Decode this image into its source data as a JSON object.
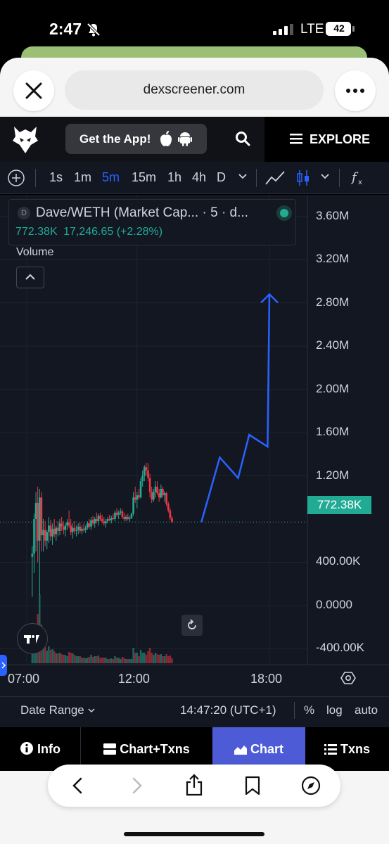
{
  "status_bar": {
    "time": "2:47",
    "network": "LTE",
    "battery": "42"
  },
  "browser": {
    "url": "dexscreener.com"
  },
  "site_header": {
    "get_app_label": "Get the App!",
    "explore_label": "EXPLORE"
  },
  "toolbar": {
    "timeframes": [
      "1s",
      "1m",
      "5m",
      "15m",
      "1h",
      "4h",
      "D"
    ],
    "active_timeframe": "5m"
  },
  "chart": {
    "title": "Dave/WETH (Market Cap... · 5 · d...",
    "last_value": "772.38K",
    "change": "17,246.65 (+2.28%)",
    "volume_label": "Volume",
    "price_tag": "772.38K",
    "colors": {
      "up": "#22ab94",
      "down": "#f23645",
      "annotation": "#2962ff",
      "background": "#131722"
    }
  },
  "chart_data": {
    "type": "candlestick",
    "y_axis_labels": [
      "3.60M",
      "3.20M",
      "2.80M",
      "2.40M",
      "2.00M",
      "1.60M",
      "1.20M",
      "400.00K",
      "0.0000",
      "-400.00K"
    ],
    "x_axis_labels": [
      "07:00",
      "12:00",
      "18:00"
    ],
    "ylim": [
      -560000,
      3800000
    ],
    "current_value": 772380,
    "annotation_path": [
      {
        "time": "14:55",
        "value": 772380
      },
      {
        "time": "15:45",
        "value": 1370000
      },
      {
        "time": "16:35",
        "value": 1180000
      },
      {
        "time": "17:05",
        "value": 1580000
      },
      {
        "time": "17:55",
        "value": 1470000
      },
      {
        "time": "18:00",
        "value": 2880000
      }
    ],
    "candles": [
      {
        "t": "07:15",
        "o": 450000,
        "h": 550000,
        "l": 80000,
        "c": 480000
      },
      {
        "t": "07:20",
        "o": 480000,
        "h": 850000,
        "l": 300000,
        "c": 800000
      },
      {
        "t": "07:25",
        "o": 800000,
        "h": 1050000,
        "l": 500000,
        "c": 950000
      },
      {
        "t": "07:30",
        "o": 950000,
        "h": 1100000,
        "l": 400000,
        "c": 600000
      },
      {
        "t": "07:35",
        "o": 600000,
        "h": 1080000,
        "l": 100000,
        "c": 1000000
      },
      {
        "t": "07:40",
        "o": 1000000,
        "h": 1050000,
        "l": 500000,
        "c": 650000
      },
      {
        "t": "07:45",
        "o": 650000,
        "h": 800000,
        "l": 500000,
        "c": 700000
      },
      {
        "t": "07:50",
        "o": 700000,
        "h": 780000,
        "l": 550000,
        "c": 600000
      },
      {
        "t": "07:55",
        "o": 600000,
        "h": 700000,
        "l": 520000,
        "c": 680000
      },
      {
        "t": "08:00",
        "o": 680000,
        "h": 820000,
        "l": 580000,
        "c": 740000
      },
      {
        "t": "08:05",
        "o": 740000,
        "h": 790000,
        "l": 600000,
        "c": 640000
      },
      {
        "t": "08:10",
        "o": 640000,
        "h": 760000,
        "l": 560000,
        "c": 710000
      },
      {
        "t": "08:15",
        "o": 710000,
        "h": 800000,
        "l": 630000,
        "c": 660000
      },
      {
        "t": "08:20",
        "o": 660000,
        "h": 740000,
        "l": 600000,
        "c": 720000
      },
      {
        "t": "08:25",
        "o": 720000,
        "h": 780000,
        "l": 640000,
        "c": 690000
      },
      {
        "t": "08:30",
        "o": 690000,
        "h": 800000,
        "l": 650000,
        "c": 760000
      },
      {
        "t": "08:35",
        "o": 760000,
        "h": 820000,
        "l": 690000,
        "c": 730000
      },
      {
        "t": "08:40",
        "o": 730000,
        "h": 780000,
        "l": 660000,
        "c": 700000
      },
      {
        "t": "08:45",
        "o": 700000,
        "h": 760000,
        "l": 640000,
        "c": 740000
      },
      {
        "t": "08:50",
        "o": 740000,
        "h": 800000,
        "l": 700000,
        "c": 770000
      },
      {
        "t": "08:55",
        "o": 770000,
        "h": 880000,
        "l": 720000,
        "c": 740000
      },
      {
        "t": "09:00",
        "o": 740000,
        "h": 800000,
        "l": 650000,
        "c": 680000
      },
      {
        "t": "09:05",
        "o": 680000,
        "h": 760000,
        "l": 620000,
        "c": 720000
      },
      {
        "t": "09:10",
        "o": 720000,
        "h": 780000,
        "l": 660000,
        "c": 690000
      },
      {
        "t": "09:15",
        "o": 690000,
        "h": 740000,
        "l": 640000,
        "c": 700000
      },
      {
        "t": "09:20",
        "o": 700000,
        "h": 760000,
        "l": 660000,
        "c": 730000
      },
      {
        "t": "09:25",
        "o": 730000,
        "h": 770000,
        "l": 670000,
        "c": 690000
      },
      {
        "t": "09:30",
        "o": 690000,
        "h": 740000,
        "l": 660000,
        "c": 710000
      },
      {
        "t": "09:35",
        "o": 710000,
        "h": 760000,
        "l": 680000,
        "c": 700000
      },
      {
        "t": "09:40",
        "o": 700000,
        "h": 740000,
        "l": 670000,
        "c": 720000
      },
      {
        "t": "09:45",
        "o": 720000,
        "h": 780000,
        "l": 700000,
        "c": 760000
      },
      {
        "t": "09:50",
        "o": 760000,
        "h": 800000,
        "l": 710000,
        "c": 730000
      },
      {
        "t": "09:55",
        "o": 730000,
        "h": 820000,
        "l": 700000,
        "c": 790000
      },
      {
        "t": "10:00",
        "o": 790000,
        "h": 830000,
        "l": 740000,
        "c": 760000
      },
      {
        "t": "10:05",
        "o": 760000,
        "h": 820000,
        "l": 720000,
        "c": 800000
      },
      {
        "t": "10:10",
        "o": 800000,
        "h": 860000,
        "l": 760000,
        "c": 780000
      },
      {
        "t": "10:15",
        "o": 780000,
        "h": 850000,
        "l": 740000,
        "c": 830000
      },
      {
        "t": "10:20",
        "o": 830000,
        "h": 860000,
        "l": 780000,
        "c": 800000
      },
      {
        "t": "10:25",
        "o": 800000,
        "h": 840000,
        "l": 760000,
        "c": 780000
      },
      {
        "t": "10:30",
        "o": 780000,
        "h": 820000,
        "l": 740000,
        "c": 760000
      },
      {
        "t": "10:35",
        "o": 760000,
        "h": 800000,
        "l": 720000,
        "c": 780000
      },
      {
        "t": "10:40",
        "o": 780000,
        "h": 820000,
        "l": 760000,
        "c": 800000
      },
      {
        "t": "10:45",
        "o": 800000,
        "h": 840000,
        "l": 780000,
        "c": 790000
      },
      {
        "t": "10:50",
        "o": 790000,
        "h": 830000,
        "l": 760000,
        "c": 810000
      },
      {
        "t": "10:55",
        "o": 810000,
        "h": 850000,
        "l": 790000,
        "c": 800000
      },
      {
        "t": "11:00",
        "o": 800000,
        "h": 880000,
        "l": 780000,
        "c": 860000
      },
      {
        "t": "11:05",
        "o": 860000,
        "h": 900000,
        "l": 820000,
        "c": 840000
      },
      {
        "t": "11:10",
        "o": 840000,
        "h": 880000,
        "l": 800000,
        "c": 860000
      },
      {
        "t": "11:15",
        "o": 860000,
        "h": 900000,
        "l": 840000,
        "c": 870000
      },
      {
        "t": "11:20",
        "o": 870000,
        "h": 890000,
        "l": 800000,
        "c": 820000
      },
      {
        "t": "11:25",
        "o": 820000,
        "h": 860000,
        "l": 780000,
        "c": 800000
      },
      {
        "t": "11:30",
        "o": 800000,
        "h": 840000,
        "l": 780000,
        "c": 820000
      },
      {
        "t": "11:35",
        "o": 820000,
        "h": 850000,
        "l": 790000,
        "c": 800000
      },
      {
        "t": "11:40",
        "o": 800000,
        "h": 830000,
        "l": 770000,
        "c": 810000
      },
      {
        "t": "11:45",
        "o": 810000,
        "h": 860000,
        "l": 800000,
        "c": 850000
      },
      {
        "t": "11:50",
        "o": 850000,
        "h": 1050000,
        "l": 830000,
        "c": 1000000
      },
      {
        "t": "11:55",
        "o": 1000000,
        "h": 1100000,
        "l": 950000,
        "c": 980000
      },
      {
        "t": "12:00",
        "o": 980000,
        "h": 1050000,
        "l": 900000,
        "c": 1020000
      },
      {
        "t": "12:05",
        "o": 1020000,
        "h": 1080000,
        "l": 980000,
        "c": 1000000
      },
      {
        "t": "12:10",
        "o": 1000000,
        "h": 1180000,
        "l": 990000,
        "c": 1150000
      },
      {
        "t": "12:15",
        "o": 1150000,
        "h": 1250000,
        "l": 1100000,
        "c": 1200000
      },
      {
        "t": "12:20",
        "o": 1200000,
        "h": 1300000,
        "l": 1150000,
        "c": 1280000
      },
      {
        "t": "12:25",
        "o": 1280000,
        "h": 1320000,
        "l": 1200000,
        "c": 1250000
      },
      {
        "t": "12:30",
        "o": 1250000,
        "h": 1320000,
        "l": 1150000,
        "c": 1180000
      },
      {
        "t": "12:35",
        "o": 1180000,
        "h": 1220000,
        "l": 1000000,
        "c": 1050000
      },
      {
        "t": "12:40",
        "o": 1050000,
        "h": 1100000,
        "l": 950000,
        "c": 980000
      },
      {
        "t": "12:45",
        "o": 980000,
        "h": 1080000,
        "l": 960000,
        "c": 1050000
      },
      {
        "t": "12:50",
        "o": 1050000,
        "h": 1150000,
        "l": 1000000,
        "c": 1100000
      },
      {
        "t": "12:55",
        "o": 1100000,
        "h": 1150000,
        "l": 1020000,
        "c": 1040000
      },
      {
        "t": "13:00",
        "o": 1040000,
        "h": 1080000,
        "l": 960000,
        "c": 1000000
      },
      {
        "t": "13:05",
        "o": 1000000,
        "h": 1120000,
        "l": 990000,
        "c": 1080000
      },
      {
        "t": "13:10",
        "o": 1080000,
        "h": 1100000,
        "l": 1000000,
        "c": 1020000
      },
      {
        "t": "13:15",
        "o": 1020000,
        "h": 1060000,
        "l": 960000,
        "c": 1040000
      },
      {
        "t": "13:20",
        "o": 1040000,
        "h": 1050000,
        "l": 920000,
        "c": 940000
      },
      {
        "t": "13:25",
        "o": 940000,
        "h": 960000,
        "l": 860000,
        "c": 880000
      },
      {
        "t": "13:30",
        "o": 880000,
        "h": 900000,
        "l": 790000,
        "c": 810000
      },
      {
        "t": "13:35",
        "o": 810000,
        "h": 830000,
        "l": 760000,
        "c": 772380
      }
    ]
  },
  "bottom_bar": {
    "date_range": "Date Range",
    "clock": "14:47:20 (UTC+1)",
    "percent": "%",
    "log": "log",
    "auto": "auto"
  },
  "tabs": [
    {
      "label": "Info"
    },
    {
      "label": "Chart+Txns"
    },
    {
      "label": "Chart"
    },
    {
      "label": "Txns"
    }
  ],
  "active_tab": "Chart"
}
